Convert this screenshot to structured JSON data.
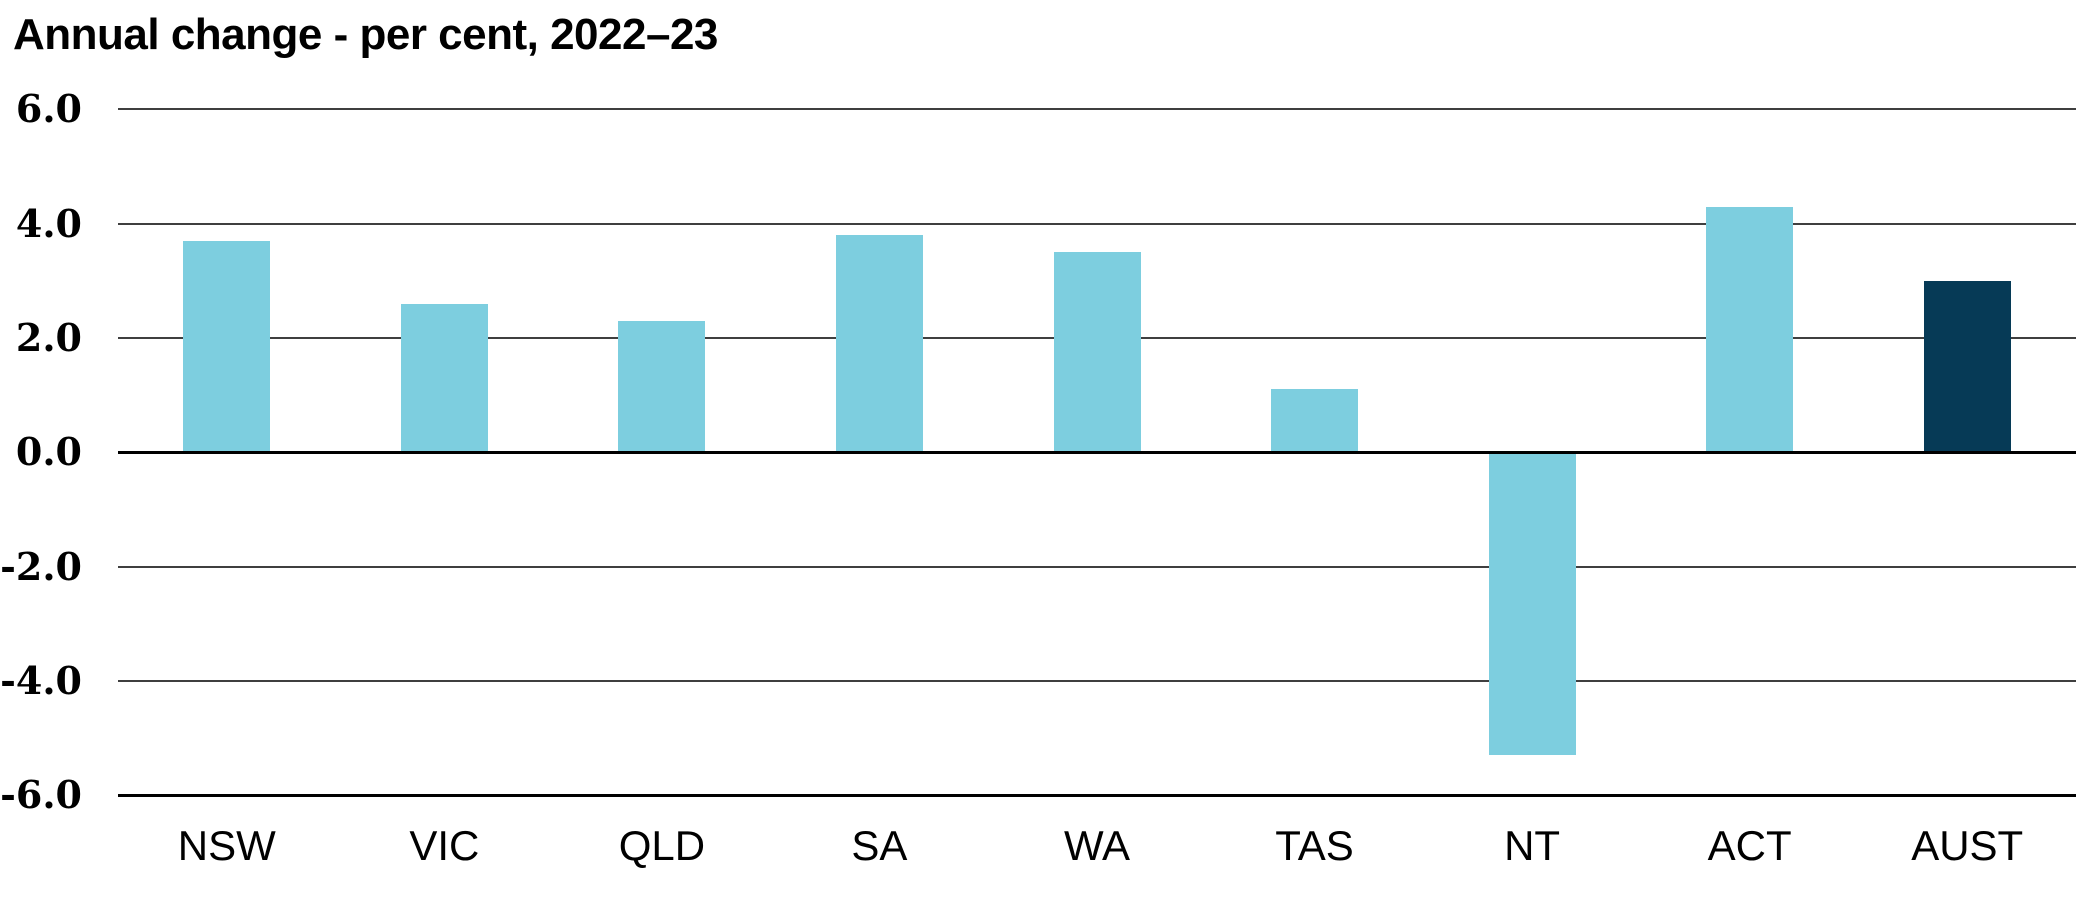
{
  "chart_data": {
    "type": "bar",
    "title": "Annual change - per cent, 2022–23",
    "categories": [
      "NSW",
      "VIC",
      "QLD",
      "SA",
      "WA",
      "TAS",
      "NT",
      "ACT",
      "AUST"
    ],
    "values": [
      3.7,
      2.6,
      2.3,
      3.8,
      3.5,
      1.1,
      -5.3,
      4.3,
      3.0
    ],
    "xlabel": "",
    "ylabel": "",
    "ylim": [
      -6.0,
      6.0
    ],
    "ytick_interval": 2.0,
    "ytick_labels": [
      "6.0",
      "4.0",
      "2.0",
      "0.0",
      "-2.0",
      "-4.0",
      "-6.0"
    ],
    "grid": "horizontal",
    "legend": "none",
    "bar_color": "#7DCEDF",
    "highlight_bar": "AUST",
    "highlight_color": "#063A56",
    "gridline_color": "#3F3F3F",
    "axis_color": "#000000",
    "background_color": "#FFFFFF",
    "text_color": "#000000"
  }
}
